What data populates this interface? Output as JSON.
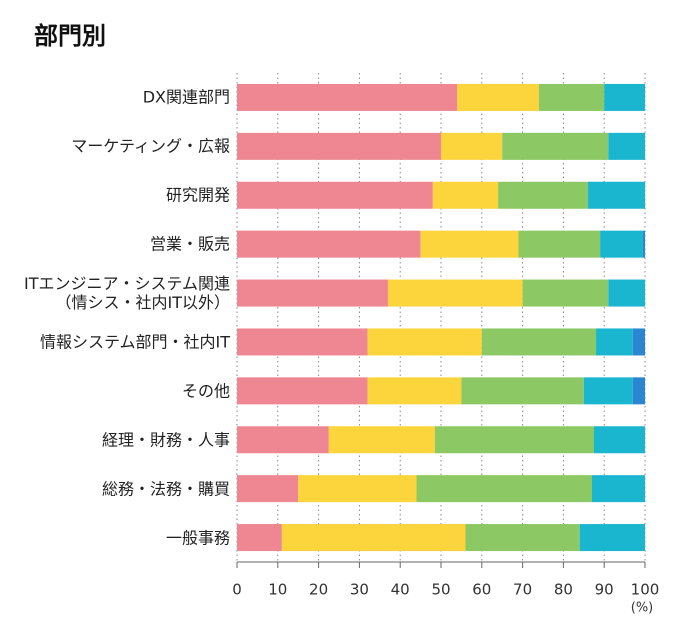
{
  "chart_data": {
    "type": "stacked-bar-horizontal",
    "title": "部門別",
    "categories": [
      "DX関連部門",
      "マーケティング・広報",
      "研究開発",
      "営業・販売",
      "ITエンジニア・システム関連\n（情シス・社内IT以外）",
      "情報システム部門・社内IT",
      "その他",
      "経理・財務・人事",
      "総務・法務・購買",
      "一般事務"
    ],
    "series": [
      {
        "color": "#ef8793",
        "values": [
          54,
          50,
          48,
          45,
          37,
          32,
          32,
          22.5,
          15,
          11
        ]
      },
      {
        "color": "#fbd53b",
        "values": [
          20,
          15,
          16,
          24,
          33,
          28,
          23,
          26,
          29,
          45
        ]
      },
      {
        "color": "#8cc863",
        "values": [
          16,
          26,
          22,
          20,
          21,
          28,
          30,
          39,
          43,
          28
        ]
      },
      {
        "color": "#1ab6d0",
        "values": [
          10,
          9,
          14,
          10.5,
          9,
          9,
          12,
          12.5,
          13,
          16
        ]
      },
      {
        "color": "#2b86d2",
        "values": [
          0,
          0,
          0,
          0.5,
          0,
          3,
          3,
          0,
          0,
          0
        ]
      }
    ],
    "xlim": [
      0,
      100
    ],
    "xticks": [
      0,
      10,
      20,
      30,
      40,
      50,
      60,
      70,
      80,
      90,
      100
    ],
    "x_label": "(%)",
    "grid": true
  }
}
